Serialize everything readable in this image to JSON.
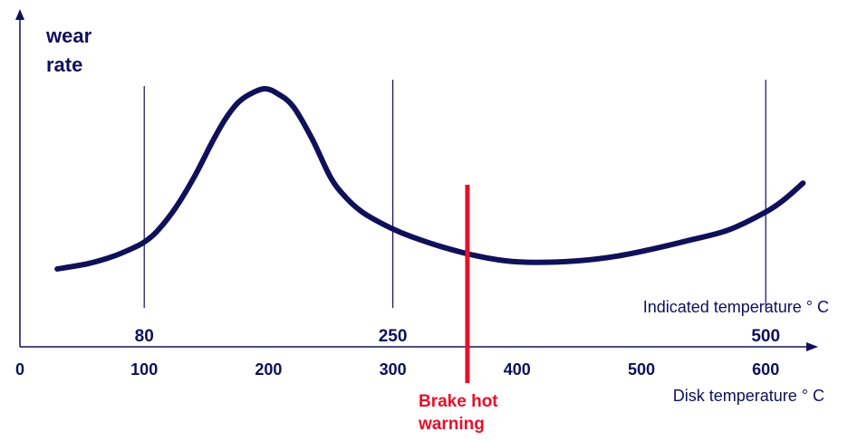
{
  "chart_data": {
    "type": "line",
    "ylabel_line1": "wear",
    "ylabel_line2": "rate",
    "xlabel_primary": "Disk temperature ° C",
    "xlabel_secondary": "Indicated temperature ° C",
    "x_ticks": [
      "0",
      "100",
      "200",
      "300",
      "400",
      "500",
      "600"
    ],
    "x_tick_values": [
      0,
      100,
      200,
      300,
      400,
      500,
      600
    ],
    "xlim": [
      0,
      640
    ],
    "indicated_markers": [
      {
        "label": "80",
        "disk_temp": 100
      },
      {
        "label": "250",
        "disk_temp": 300
      },
      {
        "label": "500",
        "disk_temp": 600
      }
    ],
    "warning": {
      "disk_temp": 360,
      "label_line1": "Brake hot",
      "label_line2": "warning",
      "color": "#e8102a"
    },
    "series": [
      {
        "color": "#10105a",
        "x": [
          30,
          55,
          75,
          92,
          100,
          110,
          125,
          140,
          155,
          165,
          175,
          185,
          197,
          208,
          220,
          235,
          250,
          262,
          275,
          290,
          305,
          320,
          340,
          365,
          390,
          415,
          450,
          480,
          510,
          540,
          570,
          600,
          615,
          630
        ],
        "y": [
          0.55,
          0.96,
          1.51,
          2.19,
          2.6,
          3.39,
          5.18,
          7.52,
          10.27,
          11.93,
          13.17,
          13.86,
          14.28,
          13.86,
          12.9,
          10.47,
          7.51,
          6.02,
          4.91,
          4.07,
          3.39,
          2.84,
          2.22,
          1.6,
          1.18,
          1.05,
          1.18,
          1.52,
          2.09,
          2.77,
          3.52,
          4.89,
          5.85,
          7.09
        ]
      }
    ],
    "ylim": [
      0,
      20
    ],
    "colors": {
      "axis": "#10105a",
      "curve": "#10105a",
      "warning": "#e8102a"
    }
  }
}
